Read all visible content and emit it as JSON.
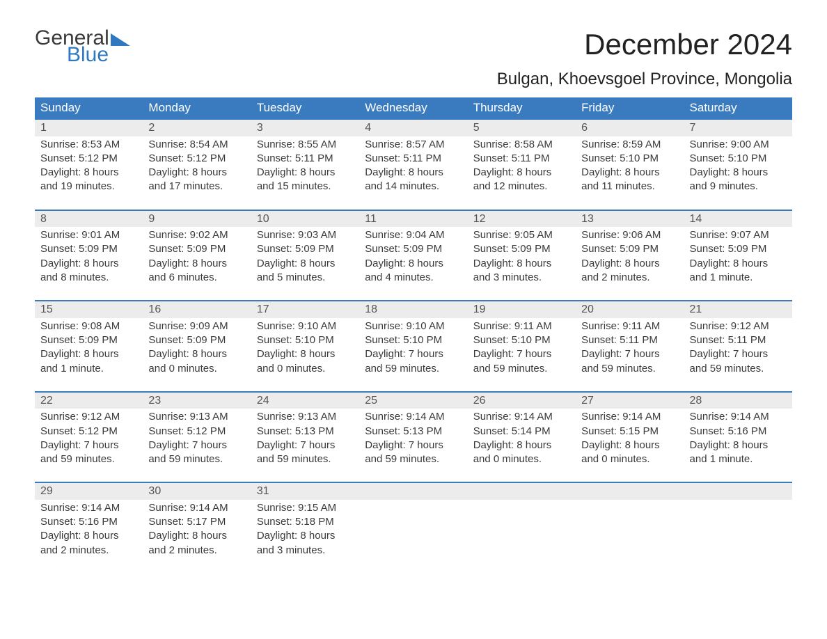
{
  "logo": {
    "part1": "General",
    "part2": "Blue"
  },
  "title": "December 2024",
  "location": "Bulgan, Khoevsgoel Province, Mongolia",
  "day_labels": [
    "Sunday",
    "Monday",
    "Tuesday",
    "Wednesday",
    "Thursday",
    "Friday",
    "Saturday"
  ],
  "colors": {
    "header_bg": "#3a7bbf",
    "header_text": "#ffffff",
    "row_border": "#3a7bbf",
    "daynum_bg": "#ececec",
    "body_text": "#3a3a3a",
    "logo_blue": "#2f78bf"
  },
  "weeks": [
    [
      {
        "n": "1",
        "sr": "8:53 AM",
        "ss": "5:12 PM",
        "dl": "8 hours and 19 minutes."
      },
      {
        "n": "2",
        "sr": "8:54 AM",
        "ss": "5:12 PM",
        "dl": "8 hours and 17 minutes."
      },
      {
        "n": "3",
        "sr": "8:55 AM",
        "ss": "5:11 PM",
        "dl": "8 hours and 15 minutes."
      },
      {
        "n": "4",
        "sr": "8:57 AM",
        "ss": "5:11 PM",
        "dl": "8 hours and 14 minutes."
      },
      {
        "n": "5",
        "sr": "8:58 AM",
        "ss": "5:11 PM",
        "dl": "8 hours and 12 minutes."
      },
      {
        "n": "6",
        "sr": "8:59 AM",
        "ss": "5:10 PM",
        "dl": "8 hours and 11 minutes."
      },
      {
        "n": "7",
        "sr": "9:00 AM",
        "ss": "5:10 PM",
        "dl": "8 hours and 9 minutes."
      }
    ],
    [
      {
        "n": "8",
        "sr": "9:01 AM",
        "ss": "5:09 PM",
        "dl": "8 hours and 8 minutes."
      },
      {
        "n": "9",
        "sr": "9:02 AM",
        "ss": "5:09 PM",
        "dl": "8 hours and 6 minutes."
      },
      {
        "n": "10",
        "sr": "9:03 AM",
        "ss": "5:09 PM",
        "dl": "8 hours and 5 minutes."
      },
      {
        "n": "11",
        "sr": "9:04 AM",
        "ss": "5:09 PM",
        "dl": "8 hours and 4 minutes."
      },
      {
        "n": "12",
        "sr": "9:05 AM",
        "ss": "5:09 PM",
        "dl": "8 hours and 3 minutes."
      },
      {
        "n": "13",
        "sr": "9:06 AM",
        "ss": "5:09 PM",
        "dl": "8 hours and 2 minutes."
      },
      {
        "n": "14",
        "sr": "9:07 AM",
        "ss": "5:09 PM",
        "dl": "8 hours and 1 minute."
      }
    ],
    [
      {
        "n": "15",
        "sr": "9:08 AM",
        "ss": "5:09 PM",
        "dl": "8 hours and 1 minute."
      },
      {
        "n": "16",
        "sr": "9:09 AM",
        "ss": "5:09 PM",
        "dl": "8 hours and 0 minutes."
      },
      {
        "n": "17",
        "sr": "9:10 AM",
        "ss": "5:10 PM",
        "dl": "8 hours and 0 minutes."
      },
      {
        "n": "18",
        "sr": "9:10 AM",
        "ss": "5:10 PM",
        "dl": "7 hours and 59 minutes."
      },
      {
        "n": "19",
        "sr": "9:11 AM",
        "ss": "5:10 PM",
        "dl": "7 hours and 59 minutes."
      },
      {
        "n": "20",
        "sr": "9:11 AM",
        "ss": "5:11 PM",
        "dl": "7 hours and 59 minutes."
      },
      {
        "n": "21",
        "sr": "9:12 AM",
        "ss": "5:11 PM",
        "dl": "7 hours and 59 minutes."
      }
    ],
    [
      {
        "n": "22",
        "sr": "9:12 AM",
        "ss": "5:12 PM",
        "dl": "7 hours and 59 minutes."
      },
      {
        "n": "23",
        "sr": "9:13 AM",
        "ss": "5:12 PM",
        "dl": "7 hours and 59 minutes."
      },
      {
        "n": "24",
        "sr": "9:13 AM",
        "ss": "5:13 PM",
        "dl": "7 hours and 59 minutes."
      },
      {
        "n": "25",
        "sr": "9:14 AM",
        "ss": "5:13 PM",
        "dl": "7 hours and 59 minutes."
      },
      {
        "n": "26",
        "sr": "9:14 AM",
        "ss": "5:14 PM",
        "dl": "8 hours and 0 minutes."
      },
      {
        "n": "27",
        "sr": "9:14 AM",
        "ss": "5:15 PM",
        "dl": "8 hours and 0 minutes."
      },
      {
        "n": "28",
        "sr": "9:14 AM",
        "ss": "5:16 PM",
        "dl": "8 hours and 1 minute."
      }
    ],
    [
      {
        "n": "29",
        "sr": "9:14 AM",
        "ss": "5:16 PM",
        "dl": "8 hours and 2 minutes."
      },
      {
        "n": "30",
        "sr": "9:14 AM",
        "ss": "5:17 PM",
        "dl": "8 hours and 2 minutes."
      },
      {
        "n": "31",
        "sr": "9:15 AM",
        "ss": "5:18 PM",
        "dl": "8 hours and 3 minutes."
      },
      null,
      null,
      null,
      null
    ]
  ],
  "labels": {
    "sunrise": "Sunrise: ",
    "sunset": "Sunset: ",
    "daylight": "Daylight: "
  }
}
